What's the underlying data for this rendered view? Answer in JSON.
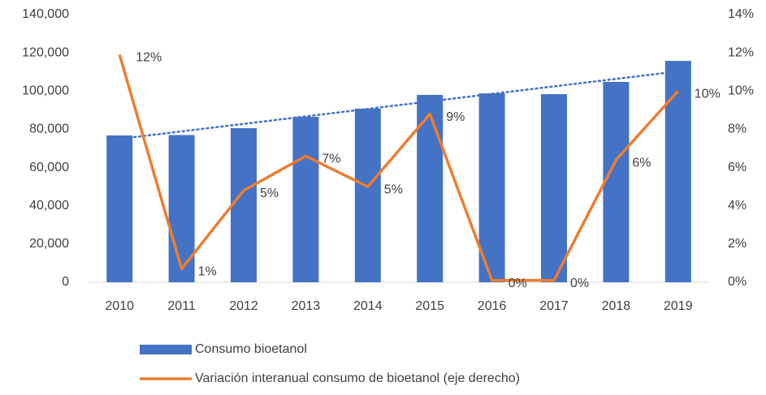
{
  "chart_data": {
    "type": "bar_line",
    "categories": [
      "2010",
      "2011",
      "2012",
      "2013",
      "2014",
      "2015",
      "2016",
      "2017",
      "2018",
      "2019"
    ],
    "series": [
      {
        "name": "Consumo bioetanol",
        "color": "#4472c4",
        "type": "bar",
        "values": [
          76800,
          77000,
          80600,
          86500,
          90800,
          98000,
          98800,
          98400,
          104800,
          115800
        ]
      },
      {
        "name": "Variación interanual consumo de bioetanol (eje derecho)",
        "color": "#ed7d31",
        "type": "line",
        "axis": "y2",
        "values": [
          11.9,
          0.7,
          4.8,
          6.6,
          5.0,
          8.8,
          0.1,
          0.1,
          6.4,
          10.0
        ],
        "value_labels": [
          "12%",
          "1%",
          "5%",
          "7%",
          "5%",
          "9%",
          "0%",
          "0%",
          "6%",
          "10%"
        ]
      }
    ],
    "trendline": {
      "color": "#4472c4",
      "start": 75000,
      "end": 110300
    },
    "ylim": [
      0,
      140000
    ],
    "yticks": [
      0,
      {
        "value": 20000,
        "label": "20,000"
      },
      {
        "value": 40000,
        "label": "40,000"
      },
      {
        "value": 60000,
        "label": "60,000"
      },
      {
        "value": 80000,
        "label": "80,000"
      },
      {
        "value": 100000,
        "label": "100,000"
      },
      {
        "value": 120000,
        "label": "120,000"
      },
      {
        "value": 140000,
        "label": "140,000"
      }
    ],
    "y2lim": [
      0,
      14
    ],
    "y2ticks": [
      {
        "value": 0,
        "label": "0%"
      },
      {
        "value": 2,
        "label": "2%"
      },
      {
        "value": 4,
        "label": "4%"
      },
      {
        "value": 6,
        "label": "6%"
      },
      {
        "value": 8,
        "label": "8%"
      },
      {
        "value": 10,
        "label": "10%"
      },
      {
        "value": 12,
        "label": "12%"
      },
      {
        "value": 14,
        "label": "14%"
      }
    ],
    "grid": false,
    "legend": "bottom"
  }
}
